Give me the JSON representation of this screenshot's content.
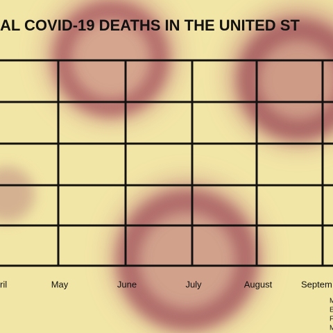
{
  "chart_data": {
    "type": "grid",
    "title": "AL COVID-19 DEATHS IN THE UNITED ST",
    "categories": [
      "ril",
      "May",
      "June",
      "July",
      "August",
      "Septem"
    ],
    "footnote": [
      "M",
      "E",
      "F",
      "M"
    ]
  }
}
